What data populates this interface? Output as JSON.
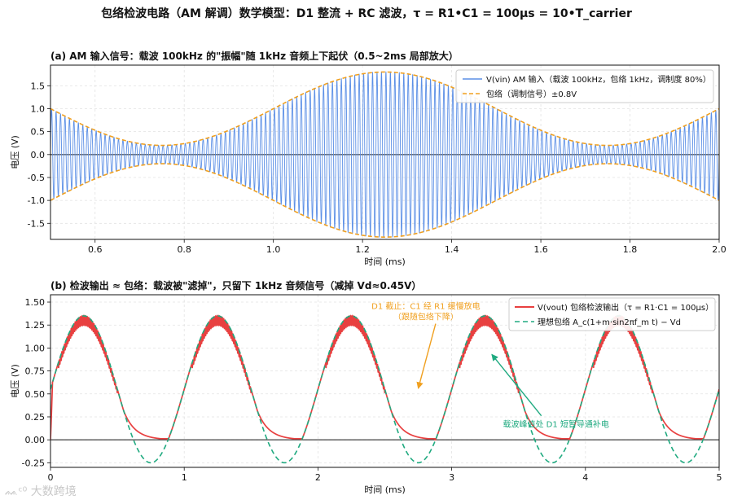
{
  "suptitle": "包络检波电路（AM 解调）数学模型：D1 整流 + RC 滤波，τ = R1•C1 = 100μs = 10•T_carrier",
  "watermark": "大数跨境",
  "colors": {
    "carrier": "#5b8fe6",
    "envelope": "#f0a020",
    "vout": "#e84040",
    "ideal": "#20aa80",
    "annot_orange": "#f0a020",
    "annot_green": "#20aa80"
  },
  "chart_data": [
    {
      "type": "line",
      "title": "(a) AM 输入信号：载波 100kHz 的\"振幅\"随 1kHz 音频上下起伏（0.5~2ms 局部放大）",
      "xlabel": "时间 (ms)",
      "ylabel": "电压 (V)",
      "xlim": [
        0.5,
        2.0
      ],
      "ylim": [
        -1.85,
        1.95
      ],
      "xticks": [
        "0.6",
        "0.8",
        "1.0",
        "1.2",
        "1.4",
        "1.6",
        "1.8",
        "2.0"
      ],
      "xtick_values": [
        0.6,
        0.8,
        1.0,
        1.2,
        1.4,
        1.6,
        1.8,
        2.0
      ],
      "yticks": [
        "-1.5",
        "-1.0",
        "-0.5",
        "0.0",
        "0.5",
        "1.0",
        "1.5"
      ],
      "ytick_values": [
        -1.5,
        -1.0,
        -0.5,
        0.0,
        0.5,
        1.0,
        1.5
      ],
      "grid": true,
      "legend_position": "top-right",
      "model": {
        "carrier_amplitude_v": 1.0,
        "carrier_khz": 100,
        "modulation_khz": 1,
        "modulation_index": 0.8
      },
      "series": [
        {
          "name": "V(vin) AM 输入（载波 100kHz，包络 1kHz，调制度 80%）",
          "style": "solid"
        },
        {
          "name": "包络（调制信号）±0.8V",
          "style": "dashed"
        }
      ]
    },
    {
      "type": "line",
      "title": "(b) 检波输出 ≈ 包络：载波被\"滤掉\"，只留下 1kHz 音频信号（减掉 Vd≈0.45V）",
      "xlabel": "时间 (ms)",
      "ylabel": "电压 (V)",
      "xlim": [
        0,
        5
      ],
      "ylim": [
        -0.3,
        1.58
      ],
      "xticks": [
        "0",
        "1",
        "2",
        "3",
        "4",
        "5"
      ],
      "xtick_values": [
        0,
        1,
        2,
        3,
        4,
        5
      ],
      "yticks": [
        "-0.25",
        "0.00",
        "0.25",
        "0.50",
        "0.75",
        "1.00",
        "1.25",
        "1.50"
      ],
      "ytick_values": [
        -0.25,
        0.0,
        0.25,
        0.5,
        0.75,
        1.0,
        1.25,
        1.5
      ],
      "grid": true,
      "legend_position": "top-right",
      "model": {
        "diode_drop_v": 0.45,
        "tau_us": 100,
        "ripple_v": 0.1
      },
      "series": [
        {
          "name": "V(vout) 包络检波输出（τ = R1·C1 = 100μs）",
          "style": "solid"
        },
        {
          "name": "理想包络 A_c(1+m·sin2πf_m t) − Vd",
          "style": "dashed"
        }
      ],
      "annotations": [
        {
          "text": [
            "D1 截止：C1 经 R1 缓慢放电",
            "（跟随包络下降）"
          ],
          "color": "orange",
          "arrow_from": [
            2.88,
            1.46
          ],
          "arrow_to": [
            2.75,
            0.56
          ]
        },
        {
          "text": [
            "载波峰值处 D1 短暂导通补电"
          ],
          "color": "green",
          "arrow_from": [
            3.78,
            0.12
          ],
          "arrow_to": [
            3.3,
            0.93
          ]
        }
      ]
    }
  ]
}
